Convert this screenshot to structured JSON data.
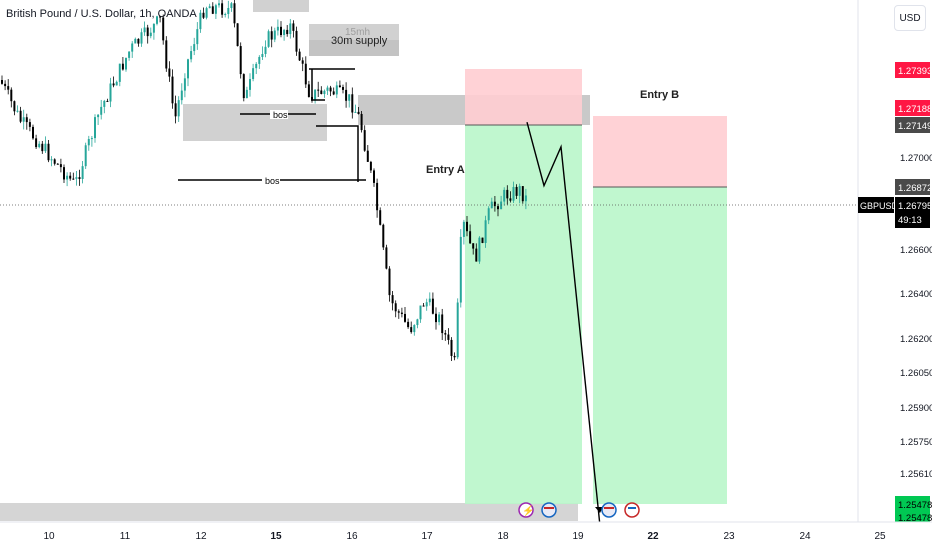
{
  "header": {
    "title": "British Pound / U.S. Dollar, 1h, OANDA",
    "currency_button": "USD"
  },
  "annotations": {
    "supply_15m": "15mh",
    "supply_30m": "30m supply",
    "bos_1": "bos",
    "bos_2": "bos",
    "entry_a": "Entry A",
    "entry_b": "Entry B"
  },
  "price_tags": {
    "symbol": "GBPUSD",
    "last_price": "1.26795",
    "countdown": "49:13",
    "tag_1": "1.27393",
    "tag_2": "1.27188",
    "tag_3": "1.27149",
    "tag_4": "1.26872",
    "tag_5": "1.25478",
    "tag_6": "1.25478"
  },
  "colors": {
    "up_candle": "#26a69a",
    "down_candle": "#000000",
    "profit_zone": "#b9f6ca",
    "loss_zone": "#ffcdd2",
    "zone_gray": "#c9c9c9",
    "tag_red": "#ff1744",
    "tag_dark": "#4a4a4a",
    "tag_green": "#00c853",
    "event_icon_purple": "#9c27b0",
    "event_icon_flag": "#1565c0"
  },
  "event_icons": [
    "lightning-icon",
    "uk-flag-icon",
    "us-flag-icon",
    "uk-flag-icon",
    "us-flag-icon"
  ],
  "chart_data": {
    "type": "candlestick",
    "symbol": "GBPUSD",
    "timeframe": "1h",
    "ylim": [
      1.2535,
      1.2785
    ],
    "x_ticks": [
      "10",
      "11",
      "12",
      "15",
      "16",
      "17",
      "18",
      "19",
      "22",
      "23",
      "24",
      "25"
    ],
    "y_ticks": [
      "1.27000",
      "1.26600",
      "1.26400",
      "1.26200",
      "1.26050",
      "1.25900",
      "1.25750",
      "1.25610"
    ],
    "current_price": 1.26795,
    "entry_a": {
      "entry": 1.27149,
      "stop": 1.27393,
      "target": 1.25478,
      "label": "Entry A"
    },
    "entry_b": {
      "entry": 1.26872,
      "stop": 1.27188,
      "target": 1.25478,
      "label": "Entry B"
    },
    "projected_path": [
      1.2716,
      1.2688,
      1.2705,
      1.2545
    ]
  }
}
